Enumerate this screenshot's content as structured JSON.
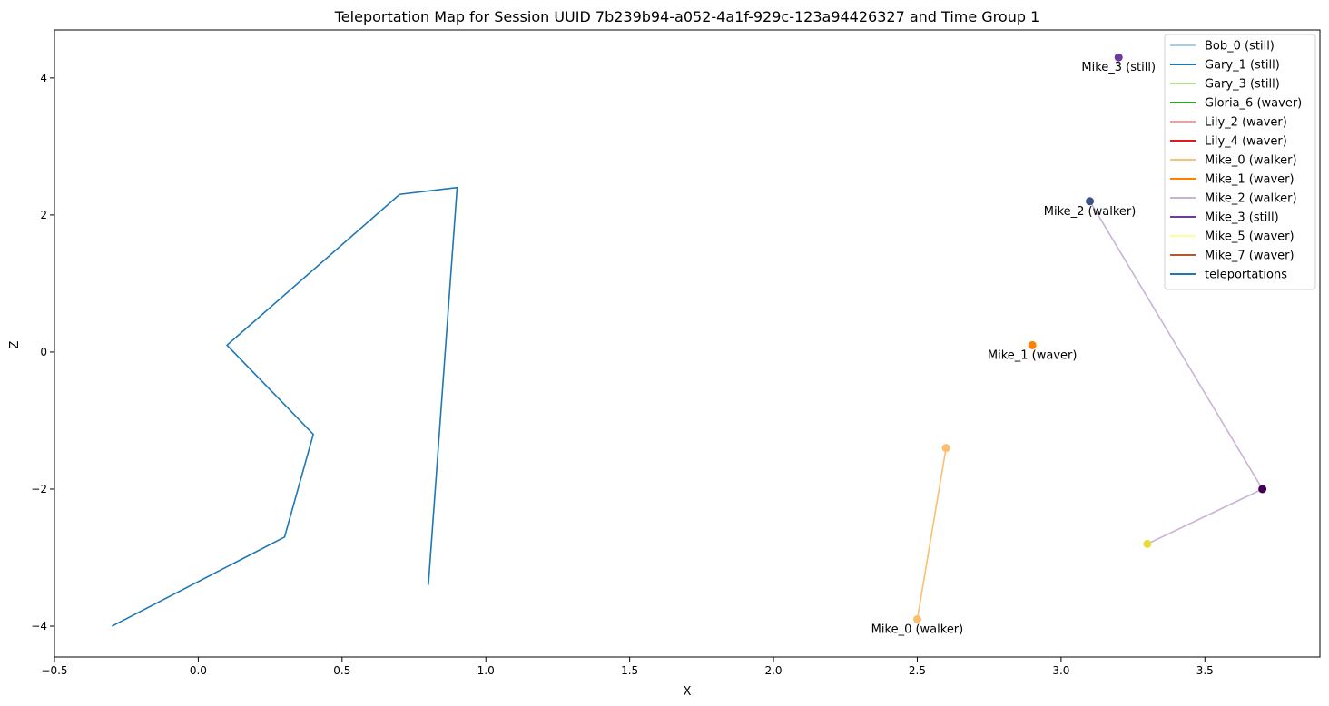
{
  "chart_data": {
    "type": "line",
    "title": "Teleportation Map for Session UUID 7b239b94-a052-4a1f-929c-123a94426327 and Time Group 1",
    "xlabel": "X",
    "ylabel": "Z",
    "xlim": [
      -0.5,
      3.9
    ],
    "ylim": [
      -4.45,
      4.7
    ],
    "xticks": [
      -0.5,
      0.0,
      0.5,
      1.0,
      1.5,
      2.0,
      2.5,
      3.0,
      3.5
    ],
    "xtick_labels": [
      "−0.5",
      "0.0",
      "0.5",
      "1.0",
      "1.5",
      "2.0",
      "2.5",
      "3.0",
      "3.5"
    ],
    "yticks": [
      -4,
      -2,
      0,
      2,
      4
    ],
    "ytick_labels": [
      "−4",
      "−2",
      "0",
      "2",
      "4"
    ],
    "grid": false,
    "legend_position": "top-right",
    "legend": [
      {
        "label": "Bob_0 (still)",
        "color": "#a6cee3"
      },
      {
        "label": "Gary_1 (still)",
        "color": "#1f78b4"
      },
      {
        "label": "Gary_3 (still)",
        "color": "#b2df8a"
      },
      {
        "label": "Gloria_6 (waver)",
        "color": "#33a02c"
      },
      {
        "label": "Lily_2 (waver)",
        "color": "#fb9a99"
      },
      {
        "label": "Lily_4 (waver)",
        "color": "#e31a1c"
      },
      {
        "label": "Mike_0 (walker)",
        "color": "#fdbf6f"
      },
      {
        "label": "Mike_1 (waver)",
        "color": "#ff7f00"
      },
      {
        "label": "Mike_2 (walker)",
        "color": "#cab2d6"
      },
      {
        "label": "Mike_3 (still)",
        "color": "#6a3d9a"
      },
      {
        "label": "Mike_5 (waver)",
        "color": "#ffff99"
      },
      {
        "label": "Mike_7 (waver)",
        "color": "#b15928"
      },
      {
        "label": "teleportations",
        "color": "#1f77b4"
      }
    ],
    "teleportations": {
      "name": "teleportations",
      "color": "#1f77b4",
      "x": [
        -0.3,
        0.3,
        0.4,
        0.1,
        0.7,
        0.9,
        0.8
      ],
      "y": [
        -4.0,
        -2.7,
        -1.2,
        0.1,
        2.3,
        2.4,
        -3.4
      ]
    },
    "series": [
      {
        "name": "Mike_0 (walker)",
        "color": "#fdbf6f",
        "x": [
          2.5,
          2.6
        ],
        "y": [
          -3.9,
          -1.4
        ],
        "points": [
          {
            "x": 2.5,
            "y": -3.9,
            "color": "#fdbf6f"
          },
          {
            "x": 2.6,
            "y": -1.4,
            "color": "#fdbf6f"
          }
        ],
        "label": "Mike_0 (walker)",
        "label_at": {
          "x": 2.5,
          "y": -3.9
        }
      },
      {
        "name": "Mike_1 (waver)",
        "color": "#ff7f00",
        "x": [
          2.9
        ],
        "y": [
          0.1
        ],
        "points": [
          {
            "x": 2.9,
            "y": 0.1,
            "color": "#ff7f00"
          }
        ],
        "label": "Mike_1 (waver)",
        "label_at": {
          "x": 2.9,
          "y": 0.1
        }
      },
      {
        "name": "Mike_2 (walker)",
        "color": "#cab2d6",
        "x": [
          3.1,
          3.7,
          3.3
        ],
        "y": [
          2.2,
          -2.0,
          -2.8
        ],
        "points": [
          {
            "x": 3.1,
            "y": 2.2,
            "color": "#3b528b"
          },
          {
            "x": 3.7,
            "y": -2.0,
            "color": "#440154"
          },
          {
            "x": 3.3,
            "y": -2.8,
            "color": "#e6dd3a"
          }
        ],
        "label": "Mike_2 (walker)",
        "label_at": {
          "x": 3.1,
          "y": 2.2
        }
      },
      {
        "name": "Mike_3 (still)",
        "color": "#6a3d9a",
        "x": [
          3.2
        ],
        "y": [
          4.3
        ],
        "points": [
          {
            "x": 3.2,
            "y": 4.3,
            "color": "#6a3d9a"
          }
        ],
        "label": "Mike_3 (still)",
        "label_at": {
          "x": 3.2,
          "y": 4.3
        }
      }
    ]
  }
}
